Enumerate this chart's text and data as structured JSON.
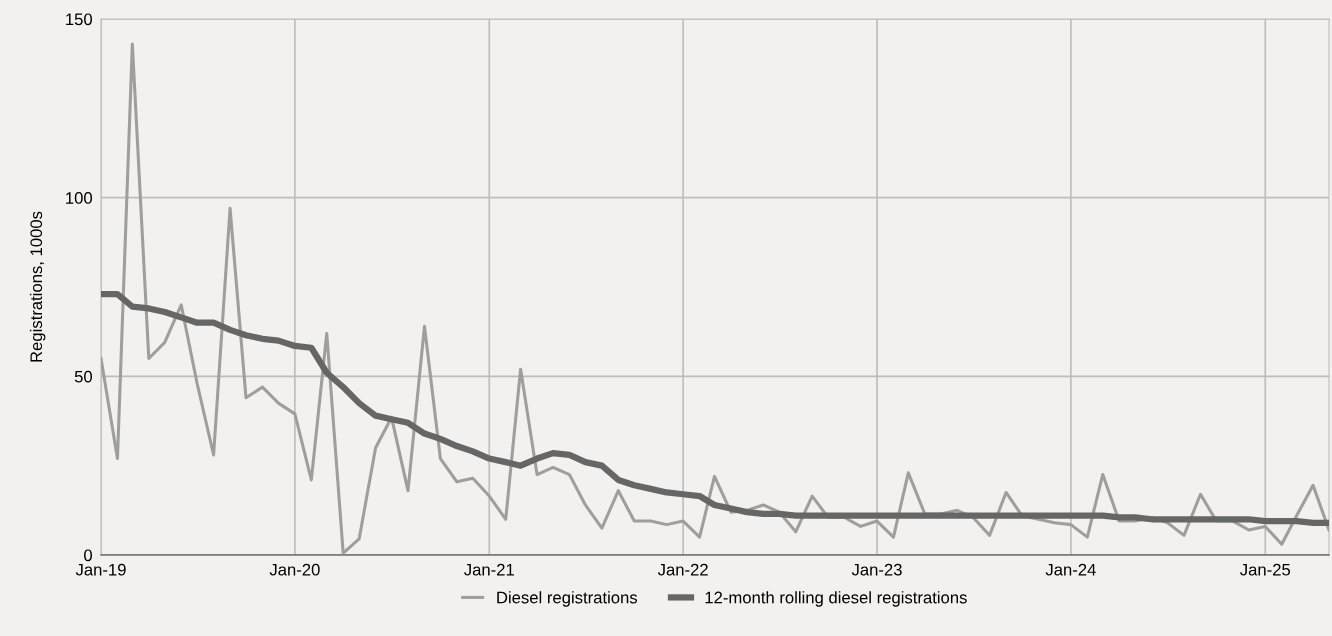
{
  "chart_data": {
    "type": "line",
    "ylabel": "Registrations, 1000s",
    "x": [
      "2019-01",
      "2019-02",
      "2019-03",
      "2019-04",
      "2019-05",
      "2019-06",
      "2019-07",
      "2019-08",
      "2019-09",
      "2019-10",
      "2019-11",
      "2019-12",
      "2020-01",
      "2020-02",
      "2020-03",
      "2020-04",
      "2020-05",
      "2020-06",
      "2020-07",
      "2020-08",
      "2020-09",
      "2020-10",
      "2020-11",
      "2020-12",
      "2021-01",
      "2021-02",
      "2021-03",
      "2021-04",
      "2021-05",
      "2021-06",
      "2021-07",
      "2021-08",
      "2021-09",
      "2021-10",
      "2021-11",
      "2021-12",
      "2022-01",
      "2022-02",
      "2022-03",
      "2022-04",
      "2022-05",
      "2022-06",
      "2022-07",
      "2022-08",
      "2022-09",
      "2022-10",
      "2022-11",
      "2022-12",
      "2023-01",
      "2023-02",
      "2023-03",
      "2023-04",
      "2023-05",
      "2023-06",
      "2023-07",
      "2023-08",
      "2023-09",
      "2023-10",
      "2023-11",
      "2023-12",
      "2024-01",
      "2024-02",
      "2024-03",
      "2024-04",
      "2024-05",
      "2024-06",
      "2024-07",
      "2024-08",
      "2024-09",
      "2024-10",
      "2024-11",
      "2024-12",
      "2025-01",
      "2025-02",
      "2025-03",
      "2025-04",
      "2025-05"
    ],
    "series": [
      {
        "name": "Diesel registrations",
        "color": "#9e9e9e",
        "values": [
          55,
          27,
          143,
          55,
          59.5,
          70,
          48,
          28,
          97,
          44,
          47,
          42.5,
          39.5,
          21,
          62,
          0.5,
          4.5,
          30,
          38.5,
          18,
          64,
          27,
          20.5,
          21.5,
          16.5,
          10,
          52,
          22.5,
          24.5,
          22.5,
          14,
          7.5,
          18,
          9.5,
          9.5,
          8.5,
          9.5,
          5,
          22,
          12,
          12.5,
          14,
          12,
          6.5,
          16.5,
          10.5,
          10.5,
          8,
          9.5,
          5,
          23,
          11.5,
          11.5,
          12.5,
          10.5,
          5.5,
          17.5,
          11,
          10,
          9,
          8.5,
          5,
          22.5,
          9.5,
          9.5,
          10.5,
          9,
          5.5,
          17,
          9.5,
          9.5,
          7,
          8,
          3,
          11,
          19.5,
          7
        ]
      },
      {
        "name": "12-month rolling diesel registrations",
        "color": "#666666",
        "values": [
          73,
          73,
          69.5,
          69,
          68,
          66.5,
          65,
          65,
          63,
          61.5,
          60.5,
          60,
          58.5,
          58,
          51,
          47,
          42.5,
          39,
          38,
          37,
          34,
          32.5,
          30.5,
          29,
          27,
          26,
          25,
          27,
          28.5,
          28,
          26,
          25,
          21,
          19.5,
          18.5,
          17.5,
          17,
          16.5,
          14,
          13,
          12,
          11.5,
          11.5,
          11,
          11,
          11,
          11,
          11,
          11,
          11,
          11,
          11,
          11,
          11,
          11,
          11,
          11,
          11,
          11,
          11,
          11,
          11,
          11,
          10.5,
          10.5,
          10,
          10,
          10,
          10,
          10,
          10,
          10,
          9.5,
          9.5,
          9.5,
          9,
          9
        ]
      }
    ],
    "xlim": [
      "2019-01",
      "2025-05"
    ],
    "xticks": [
      {
        "value": "2019-01",
        "label": "Jan-19"
      },
      {
        "value": "2020-01",
        "label": "Jan-20"
      },
      {
        "value": "2021-01",
        "label": "Jan-21"
      },
      {
        "value": "2022-01",
        "label": "Jan-22"
      },
      {
        "value": "2023-01",
        "label": "Jan-23"
      },
      {
        "value": "2024-01",
        "label": "Jan-24"
      },
      {
        "value": "2025-01",
        "label": "Jan-25"
      }
    ],
    "ylim": [
      0,
      150
    ],
    "yticks": [
      0,
      50,
      100,
      150
    ],
    "grid": true,
    "legend": "bottom",
    "marker": "none",
    "line_style": "solid"
  }
}
